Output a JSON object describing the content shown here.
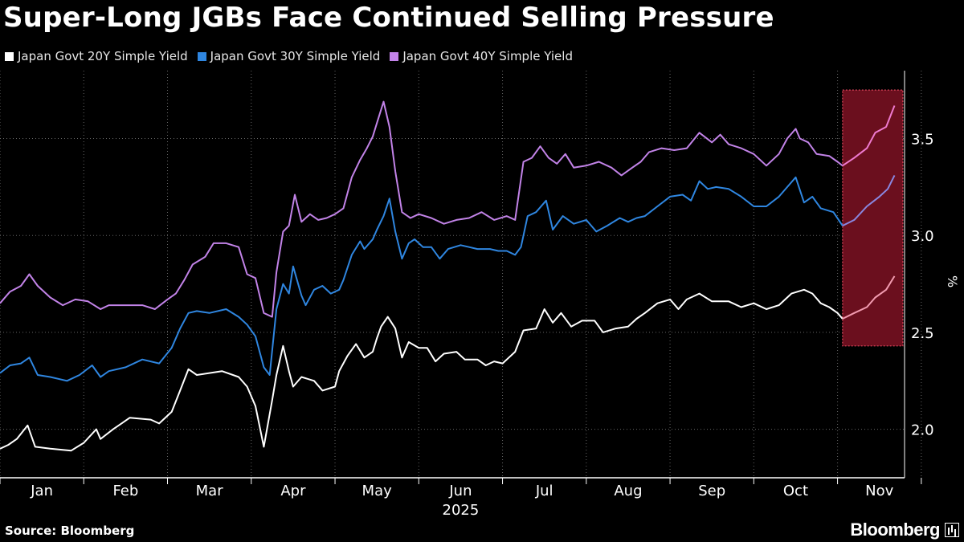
{
  "title": "Super-Long JGBs Face Continued Selling Pressure",
  "source": "Source: Bloomberg",
  "brand": "Bloomberg",
  "chart_data": {
    "type": "line",
    "ylabel": "%",
    "ylim": [
      1.75,
      3.85
    ],
    "xlim": [
      0,
      10.8
    ],
    "yticks": [
      2.0,
      2.5,
      3.0,
      3.5
    ],
    "ytick_labels": [
      "2.0",
      "2.5",
      "3.0",
      "3.5"
    ],
    "months": [
      "Jan",
      "Feb",
      "Mar",
      "Apr",
      "May",
      "Jun",
      "Jul",
      "Aug",
      "Sep",
      "Oct",
      "Nov"
    ],
    "year_label": "2025",
    "grid": true,
    "highlight": {
      "x_start": 10.06,
      "x_end": 10.78,
      "y_low": 2.43,
      "y_high": 3.75,
      "color": "#6b0f1e"
    },
    "series": [
      {
        "name": "Japan Govt 20Y Simple Yield",
        "color": "#ffffff",
        "highlight_color": "#f29bb0",
        "points": [
          [
            0,
            1.9
          ],
          [
            0.1,
            1.92
          ],
          [
            0.2,
            1.95
          ],
          [
            0.33,
            2.02
          ],
          [
            0.42,
            1.91
          ],
          [
            0.6,
            1.9
          ],
          [
            0.85,
            1.89
          ],
          [
            1.0,
            1.93
          ],
          [
            1.15,
            2.0
          ],
          [
            1.2,
            1.95
          ],
          [
            1.35,
            2.0
          ],
          [
            1.45,
            2.03
          ],
          [
            1.55,
            2.06
          ],
          [
            1.8,
            2.05
          ],
          [
            1.9,
            2.03
          ],
          [
            2.05,
            2.09
          ],
          [
            2.15,
            2.2
          ],
          [
            2.25,
            2.31
          ],
          [
            2.35,
            2.28
          ],
          [
            2.5,
            2.29
          ],
          [
            2.65,
            2.3
          ],
          [
            2.85,
            2.27
          ],
          [
            2.95,
            2.22
          ],
          [
            3.05,
            2.12
          ],
          [
            3.15,
            1.91
          ],
          [
            3.25,
            2.15
          ],
          [
            3.3,
            2.28
          ],
          [
            3.38,
            2.43
          ],
          [
            3.45,
            2.3
          ],
          [
            3.5,
            2.22
          ],
          [
            3.6,
            2.27
          ],
          [
            3.75,
            2.25
          ],
          [
            3.85,
            2.2
          ],
          [
            4.0,
            2.22
          ],
          [
            4.05,
            2.3
          ],
          [
            4.15,
            2.38
          ],
          [
            4.25,
            2.44
          ],
          [
            4.35,
            2.37
          ],
          [
            4.45,
            2.4
          ],
          [
            4.5,
            2.47
          ],
          [
            4.55,
            2.53
          ],
          [
            4.63,
            2.58
          ],
          [
            4.72,
            2.52
          ],
          [
            4.8,
            2.37
          ],
          [
            4.88,
            2.45
          ],
          [
            5.0,
            2.42
          ],
          [
            5.1,
            2.42
          ],
          [
            5.2,
            2.35
          ],
          [
            5.3,
            2.39
          ],
          [
            5.45,
            2.4
          ],
          [
            5.55,
            2.36
          ],
          [
            5.7,
            2.36
          ],
          [
            5.8,
            2.33
          ],
          [
            5.9,
            2.35
          ],
          [
            6.0,
            2.34
          ],
          [
            6.15,
            2.4
          ],
          [
            6.25,
            2.51
          ],
          [
            6.4,
            2.52
          ],
          [
            6.5,
            2.62
          ],
          [
            6.6,
            2.55
          ],
          [
            6.7,
            2.6
          ],
          [
            6.82,
            2.53
          ],
          [
            6.95,
            2.56
          ],
          [
            7.1,
            2.56
          ],
          [
            7.2,
            2.5
          ],
          [
            7.35,
            2.52
          ],
          [
            7.5,
            2.53
          ],
          [
            7.6,
            2.57
          ],
          [
            7.7,
            2.6
          ],
          [
            7.85,
            2.65
          ],
          [
            8.0,
            2.67
          ],
          [
            8.1,
            2.62
          ],
          [
            8.2,
            2.67
          ],
          [
            8.35,
            2.7
          ],
          [
            8.5,
            2.66
          ],
          [
            8.7,
            2.66
          ],
          [
            8.85,
            2.63
          ],
          [
            9.0,
            2.65
          ],
          [
            9.15,
            2.62
          ],
          [
            9.3,
            2.64
          ],
          [
            9.45,
            2.7
          ],
          [
            9.6,
            2.72
          ],
          [
            9.7,
            2.7
          ],
          [
            9.8,
            2.65
          ],
          [
            9.9,
            2.63
          ],
          [
            10.0,
            2.6
          ],
          [
            10.06,
            2.57
          ],
          [
            10.2,
            2.6
          ],
          [
            10.35,
            2.63
          ],
          [
            10.45,
            2.68
          ],
          [
            10.58,
            2.72
          ],
          [
            10.68,
            2.79
          ]
        ]
      },
      {
        "name": "Japan Govt 30Y Simple Yield",
        "color": "#2f86e0",
        "highlight_color": "#8a87e0",
        "points": [
          [
            0,
            2.29
          ],
          [
            0.12,
            2.33
          ],
          [
            0.25,
            2.34
          ],
          [
            0.35,
            2.37
          ],
          [
            0.45,
            2.28
          ],
          [
            0.6,
            2.27
          ],
          [
            0.8,
            2.25
          ],
          [
            0.95,
            2.28
          ],
          [
            1.1,
            2.33
          ],
          [
            1.2,
            2.27
          ],
          [
            1.3,
            2.3
          ],
          [
            1.5,
            2.32
          ],
          [
            1.7,
            2.36
          ],
          [
            1.9,
            2.34
          ],
          [
            2.05,
            2.42
          ],
          [
            2.15,
            2.52
          ],
          [
            2.25,
            2.6
          ],
          [
            2.35,
            2.61
          ],
          [
            2.5,
            2.6
          ],
          [
            2.7,
            2.62
          ],
          [
            2.85,
            2.58
          ],
          [
            2.95,
            2.54
          ],
          [
            3.05,
            2.48
          ],
          [
            3.15,
            2.32
          ],
          [
            3.22,
            2.28
          ],
          [
            3.3,
            2.62
          ],
          [
            3.38,
            2.75
          ],
          [
            3.45,
            2.7
          ],
          [
            3.5,
            2.84
          ],
          [
            3.6,
            2.69
          ],
          [
            3.65,
            2.64
          ],
          [
            3.75,
            2.72
          ],
          [
            3.85,
            2.74
          ],
          [
            3.95,
            2.7
          ],
          [
            4.05,
            2.72
          ],
          [
            4.1,
            2.77
          ],
          [
            4.2,
            2.9
          ],
          [
            4.3,
            2.97
          ],
          [
            4.35,
            2.93
          ],
          [
            4.45,
            2.98
          ],
          [
            4.5,
            3.03
          ],
          [
            4.58,
            3.1
          ],
          [
            4.65,
            3.19
          ],
          [
            4.72,
            3.02
          ],
          [
            4.8,
            2.88
          ],
          [
            4.88,
            2.96
          ],
          [
            4.95,
            2.98
          ],
          [
            5.05,
            2.94
          ],
          [
            5.15,
            2.94
          ],
          [
            5.25,
            2.88
          ],
          [
            5.35,
            2.93
          ],
          [
            5.5,
            2.95
          ],
          [
            5.6,
            2.94
          ],
          [
            5.7,
            2.93
          ],
          [
            5.85,
            2.93
          ],
          [
            5.95,
            2.92
          ],
          [
            6.05,
            2.92
          ],
          [
            6.15,
            2.9
          ],
          [
            6.22,
            2.94
          ],
          [
            6.3,
            3.1
          ],
          [
            6.4,
            3.12
          ],
          [
            6.52,
            3.18
          ],
          [
            6.6,
            3.03
          ],
          [
            6.72,
            3.1
          ],
          [
            6.85,
            3.06
          ],
          [
            7.0,
            3.08
          ],
          [
            7.12,
            3.02
          ],
          [
            7.25,
            3.05
          ],
          [
            7.4,
            3.09
          ],
          [
            7.5,
            3.07
          ],
          [
            7.6,
            3.09
          ],
          [
            7.7,
            3.1
          ],
          [
            7.85,
            3.15
          ],
          [
            8.0,
            3.2
          ],
          [
            8.15,
            3.21
          ],
          [
            8.25,
            3.18
          ],
          [
            8.35,
            3.28
          ],
          [
            8.45,
            3.24
          ],
          [
            8.55,
            3.25
          ],
          [
            8.7,
            3.24
          ],
          [
            8.85,
            3.2
          ],
          [
            9.0,
            3.15
          ],
          [
            9.15,
            3.15
          ],
          [
            9.3,
            3.2
          ],
          [
            9.4,
            3.25
          ],
          [
            9.5,
            3.3
          ],
          [
            9.6,
            3.17
          ],
          [
            9.7,
            3.2
          ],
          [
            9.8,
            3.14
          ],
          [
            9.95,
            3.12
          ],
          [
            10.06,
            3.05
          ],
          [
            10.2,
            3.08
          ],
          [
            10.35,
            3.15
          ],
          [
            10.5,
            3.2
          ],
          [
            10.6,
            3.24
          ],
          [
            10.68,
            3.31
          ]
        ]
      },
      {
        "name": "Japan Govt 40Y Simple Yield",
        "color": "#c283e8",
        "highlight_color": "#ef7ad0",
        "points": [
          [
            0,
            2.65
          ],
          [
            0.12,
            2.71
          ],
          [
            0.25,
            2.74
          ],
          [
            0.35,
            2.8
          ],
          [
            0.45,
            2.74
          ],
          [
            0.6,
            2.68
          ],
          [
            0.75,
            2.64
          ],
          [
            0.9,
            2.67
          ],
          [
            1.05,
            2.66
          ],
          [
            1.2,
            2.62
          ],
          [
            1.3,
            2.64
          ],
          [
            1.5,
            2.64
          ],
          [
            1.7,
            2.64
          ],
          [
            1.85,
            2.62
          ],
          [
            2.0,
            2.67
          ],
          [
            2.1,
            2.7
          ],
          [
            2.2,
            2.77
          ],
          [
            2.3,
            2.85
          ],
          [
            2.45,
            2.89
          ],
          [
            2.55,
            2.96
          ],
          [
            2.7,
            2.96
          ],
          [
            2.85,
            2.94
          ],
          [
            2.95,
            2.8
          ],
          [
            3.05,
            2.78
          ],
          [
            3.15,
            2.6
          ],
          [
            3.25,
            2.58
          ],
          [
            3.3,
            2.81
          ],
          [
            3.38,
            3.02
          ],
          [
            3.45,
            3.05
          ],
          [
            3.52,
            3.21
          ],
          [
            3.6,
            3.07
          ],
          [
            3.7,
            3.11
          ],
          [
            3.8,
            3.08
          ],
          [
            3.9,
            3.09
          ],
          [
            4.0,
            3.11
          ],
          [
            4.1,
            3.14
          ],
          [
            4.2,
            3.3
          ],
          [
            4.3,
            3.39
          ],
          [
            4.38,
            3.45
          ],
          [
            4.45,
            3.51
          ],
          [
            4.5,
            3.58
          ],
          [
            4.58,
            3.69
          ],
          [
            4.65,
            3.56
          ],
          [
            4.72,
            3.33
          ],
          [
            4.8,
            3.12
          ],
          [
            4.9,
            3.09
          ],
          [
            5.0,
            3.11
          ],
          [
            5.15,
            3.09
          ],
          [
            5.3,
            3.06
          ],
          [
            5.45,
            3.08
          ],
          [
            5.6,
            3.09
          ],
          [
            5.75,
            3.12
          ],
          [
            5.9,
            3.08
          ],
          [
            6.05,
            3.1
          ],
          [
            6.15,
            3.08
          ],
          [
            6.25,
            3.38
          ],
          [
            6.35,
            3.4
          ],
          [
            6.45,
            3.46
          ],
          [
            6.55,
            3.4
          ],
          [
            6.65,
            3.37
          ],
          [
            6.75,
            3.42
          ],
          [
            6.85,
            3.35
          ],
          [
            7.0,
            3.36
          ],
          [
            7.15,
            3.38
          ],
          [
            7.3,
            3.35
          ],
          [
            7.42,
            3.31
          ],
          [
            7.55,
            3.35
          ],
          [
            7.65,
            3.38
          ],
          [
            7.75,
            3.43
          ],
          [
            7.9,
            3.45
          ],
          [
            8.05,
            3.44
          ],
          [
            8.2,
            3.45
          ],
          [
            8.35,
            3.53
          ],
          [
            8.5,
            3.48
          ],
          [
            8.6,
            3.52
          ],
          [
            8.7,
            3.47
          ],
          [
            8.85,
            3.45
          ],
          [
            9.0,
            3.42
          ],
          [
            9.15,
            3.36
          ],
          [
            9.3,
            3.42
          ],
          [
            9.4,
            3.5
          ],
          [
            9.5,
            3.55
          ],
          [
            9.55,
            3.5
          ],
          [
            9.65,
            3.48
          ],
          [
            9.75,
            3.42
          ],
          [
            9.9,
            3.41
          ],
          [
            10.0,
            3.38
          ],
          [
            10.06,
            3.36
          ],
          [
            10.2,
            3.4
          ],
          [
            10.35,
            3.45
          ],
          [
            10.45,
            3.53
          ],
          [
            10.58,
            3.56
          ],
          [
            10.68,
            3.67
          ]
        ]
      }
    ]
  }
}
